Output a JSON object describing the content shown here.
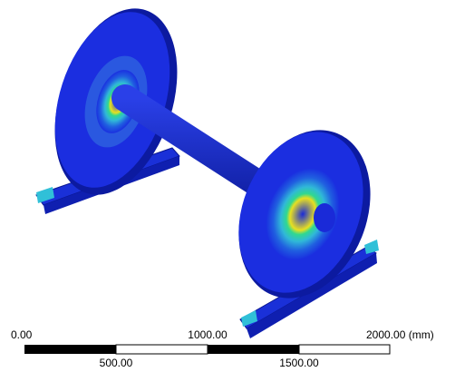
{
  "scale_bar": {
    "top_labels": [
      "0.00",
      "1000.00",
      "2000.00 (mm)"
    ],
    "bottom_labels": [
      "500.00",
      "1500.00"
    ]
  }
}
